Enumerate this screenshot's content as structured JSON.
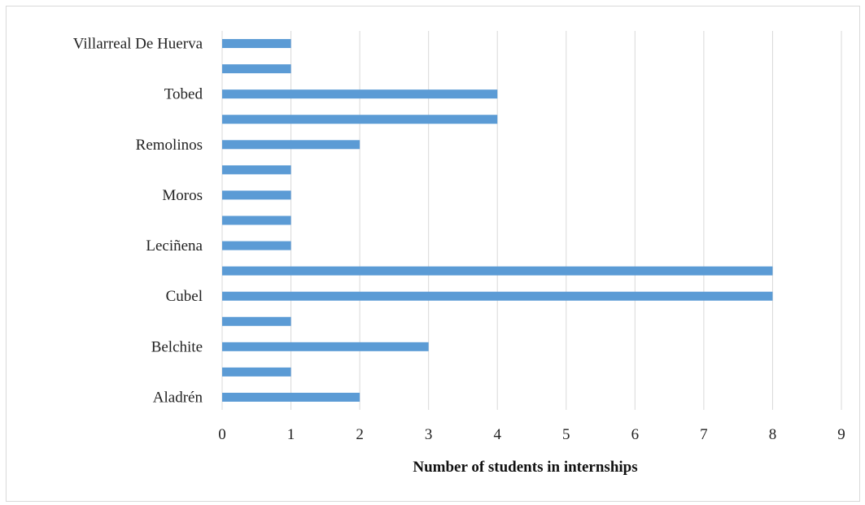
{
  "chart_data": {
    "type": "bar",
    "orientation": "horizontal",
    "title": "",
    "xlabel": "Number of students in internships",
    "ylabel": "",
    "xlim": [
      0,
      9
    ],
    "x_ticks": [
      "0",
      "1",
      "2",
      "3",
      "4",
      "5",
      "6",
      "7",
      "8",
      "9"
    ],
    "grid": "vertical",
    "legend": "none",
    "bar_color": "#5b9bd5",
    "categories": [
      "Aladrén",
      "",
      "Belchite",
      "",
      "Cubel",
      "",
      "Leciñena",
      "",
      "Moros",
      "",
      "Remolinos",
      "",
      "Tobed",
      "",
      "Villarreal De Huerva"
    ],
    "values": [
      2,
      1,
      3,
      1,
      8,
      8,
      1,
      1,
      1,
      1,
      2,
      4,
      4,
      1,
      1
    ]
  }
}
